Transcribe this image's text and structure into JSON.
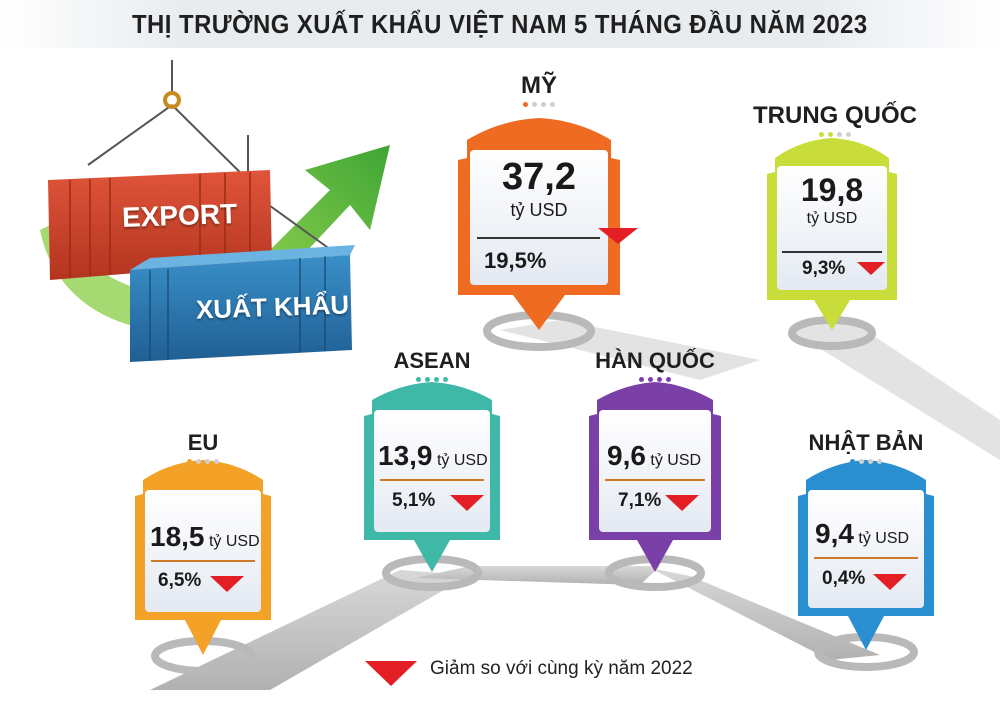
{
  "title": "THỊ TRƯỜNG XUẤT KHẨU VIỆT NAM 5 THÁNG ĐẦU NĂM 2023",
  "illustration": {
    "container_red_label": "EXPORT",
    "container_blue_label": "XUẤT KHẨU",
    "icons": [
      "cargo-container-icon",
      "crane-hook-icon",
      "growth-arrow-icon"
    ]
  },
  "unit": "tỷ USD",
  "markets": {
    "my": {
      "name": "MỸ",
      "value": "37,2",
      "change": "19,5%",
      "color": "#ef6b22"
    },
    "trung_quoc": {
      "name": "TRUNG QUỐC",
      "value": "19,8",
      "change": "9,3%",
      "color": "#c9dd3a"
    },
    "asean": {
      "name": "ASEAN",
      "value": "13,9",
      "change": "5,1%",
      "color": "#3fb8a8"
    },
    "han_quoc": {
      "name": "HÀN QUỐC",
      "value": "9,6",
      "change": "7,1%",
      "color": "#7b3fa8"
    },
    "eu": {
      "name": "EU",
      "value": "18,5",
      "change": "6,5%",
      "color": "#f4a227"
    },
    "nhat_ban": {
      "name": "NHẬT BẢN",
      "value": "9,4",
      "change": "0,4%",
      "color": "#2a8fd1"
    }
  },
  "legend": {
    "text": "Giảm so với cùng kỳ năm 2022",
    "icon": "decrease-triangle-icon",
    "color": "#e31e24"
  }
}
